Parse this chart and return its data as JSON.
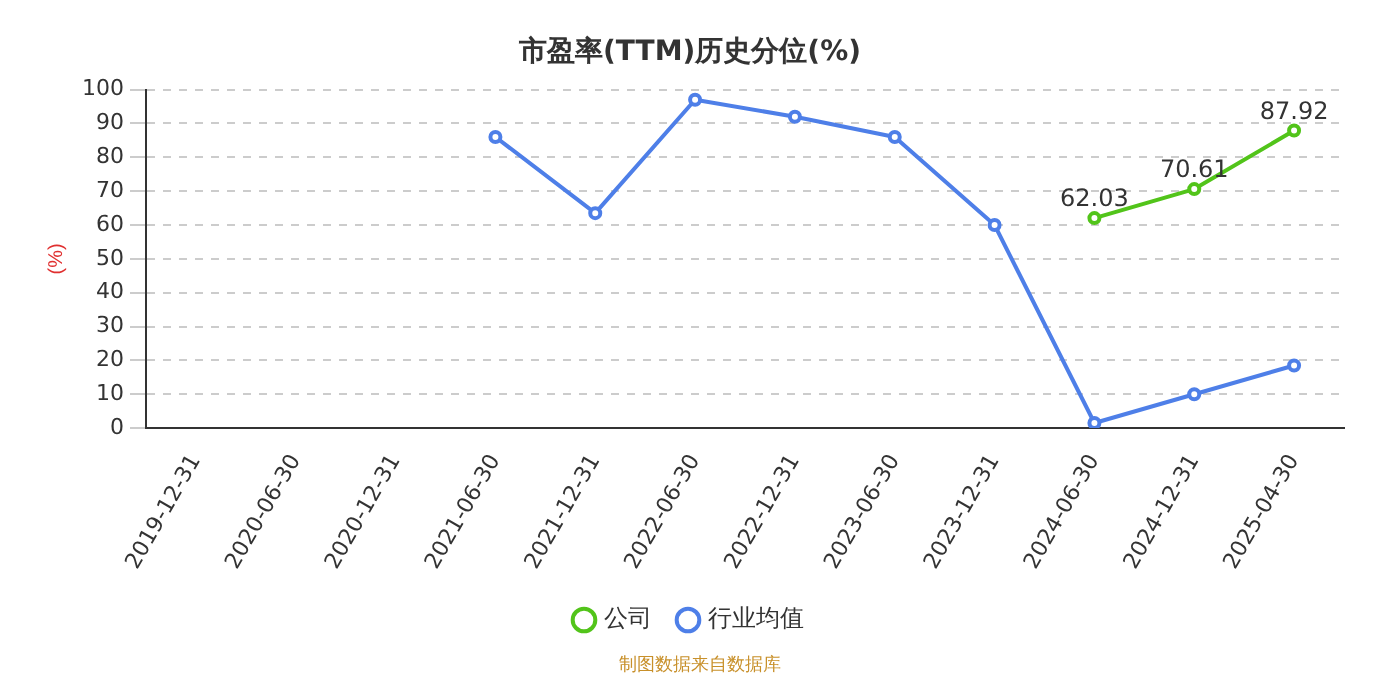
{
  "chart_data": {
    "type": "line",
    "title": "市盈率(TTM)历史分位(%)",
    "ylabel": "(%)",
    "categories": [
      "2019-12-31",
      "2020-06-30",
      "2020-12-31",
      "2021-06-30",
      "2021-12-31",
      "2022-06-30",
      "2022-12-31",
      "2023-06-30",
      "2023-12-31",
      "2024-06-30",
      "2024-12-31",
      "2025-04-30"
    ],
    "series": [
      {
        "name": "公司",
        "color": "#52c41a",
        "values": [
          null,
          null,
          null,
          null,
          null,
          null,
          null,
          null,
          null,
          62.03,
          70.61,
          87.92
        ],
        "value_labels": [
          null,
          null,
          null,
          null,
          null,
          null,
          null,
          null,
          null,
          "62.03",
          "70.61",
          "87.92"
        ]
      },
      {
        "name": "行业均值",
        "color": "#4e7fe8",
        "values": [
          null,
          null,
          null,
          86,
          63.5,
          97,
          92,
          86,
          60,
          1.5,
          10,
          18.5
        ]
      }
    ],
    "ylim": [
      0,
      100
    ],
    "yticks": [
      0,
      10,
      20,
      30,
      40,
      50,
      60,
      70,
      80,
      90,
      100
    ],
    "grid": "y",
    "legend": "bottom",
    "marker": "circle",
    "line_style": "solid",
    "annotations": [
      "制图数据来自数据库"
    ]
  }
}
